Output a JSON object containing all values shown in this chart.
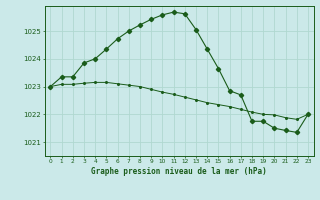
{
  "title": "Graphe pression niveau de la mer (hPa)",
  "background_color": "#cbe9e9",
  "grid_color": "#b0d8d0",
  "line_color": "#1a5c1a",
  "xlim": [
    -0.5,
    23.5
  ],
  "ylim": [
    1020.5,
    1025.9
  ],
  "yticks": [
    1021,
    1022,
    1023,
    1024,
    1025
  ],
  "xticks": [
    0,
    1,
    2,
    3,
    4,
    5,
    6,
    7,
    8,
    9,
    10,
    11,
    12,
    13,
    14,
    15,
    16,
    17,
    18,
    19,
    20,
    21,
    22,
    23
  ],
  "series1_x": [
    0,
    1,
    2,
    3,
    4,
    5,
    6,
    7,
    8,
    9,
    10,
    11,
    12,
    13,
    14,
    15,
    16,
    17,
    18,
    19,
    20,
    21,
    22,
    23
  ],
  "series1_y": [
    1023.0,
    1023.35,
    1023.35,
    1023.85,
    1024.0,
    1024.35,
    1024.72,
    1025.0,
    1025.22,
    1025.42,
    1025.58,
    1025.68,
    1025.62,
    1025.05,
    1024.35,
    1023.65,
    1022.85,
    1022.7,
    1021.75,
    1021.75,
    1021.5,
    1021.42,
    1021.35,
    1022.0
  ],
  "series2_x": [
    0,
    1,
    2,
    3,
    4,
    5,
    6,
    7,
    8,
    9,
    10,
    11,
    12,
    13,
    14,
    15,
    16,
    17,
    18,
    19,
    20,
    21,
    22,
    23
  ],
  "series2_y": [
    1023.0,
    1023.08,
    1023.08,
    1023.12,
    1023.15,
    1023.15,
    1023.1,
    1023.05,
    1023.0,
    1022.9,
    1022.8,
    1022.72,
    1022.62,
    1022.52,
    1022.42,
    1022.35,
    1022.28,
    1022.18,
    1022.08,
    1022.0,
    1021.98,
    1021.88,
    1021.82,
    1022.0
  ]
}
